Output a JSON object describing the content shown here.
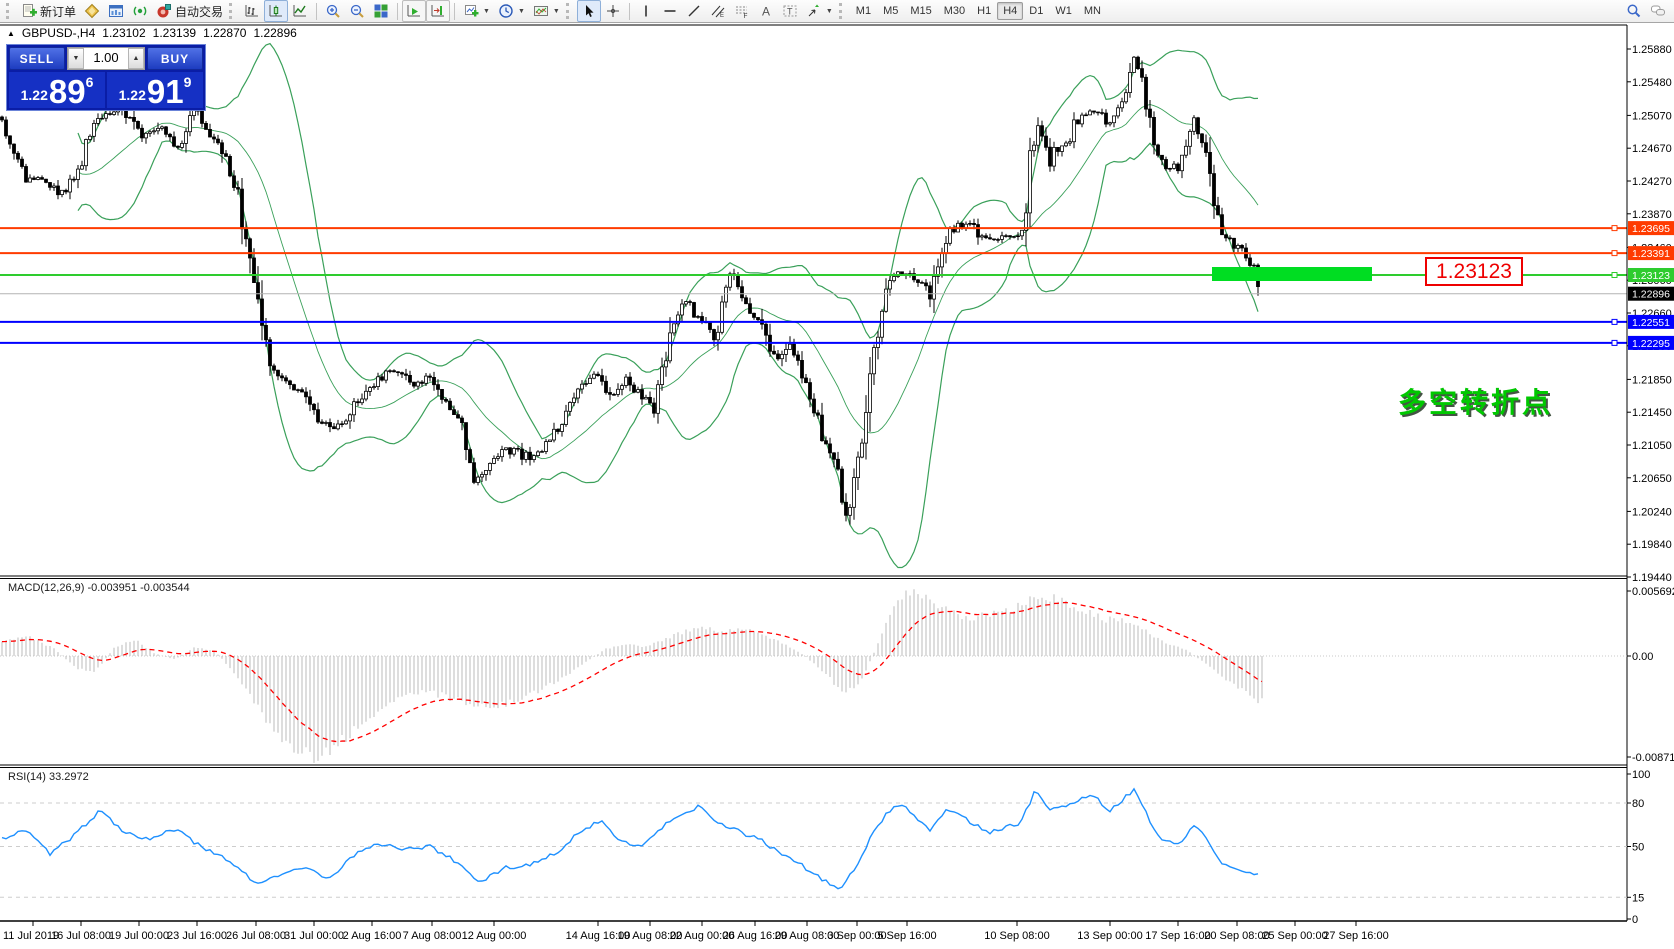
{
  "toolbar": {
    "new_order_label": "新订单",
    "auto_trading_label": "自动交易",
    "timeframes": [
      "M1",
      "M5",
      "M15",
      "M30",
      "H1",
      "H4",
      "D1",
      "W1",
      "MN"
    ],
    "active_timeframe": "H4",
    "items": [
      {
        "kind": "grip"
      },
      {
        "kind": "button",
        "name": "new-order-button",
        "icon": "new-order-icon",
        "label_key": "new_order_label"
      },
      {
        "kind": "button",
        "name": "market-watch-button",
        "icon": "market-watch-icon"
      },
      {
        "kind": "button",
        "name": "data-window-button",
        "icon": "data-window-icon"
      },
      {
        "kind": "button",
        "name": "signals-button",
        "icon": "signals-icon"
      },
      {
        "kind": "button",
        "name": "auto-trading-button",
        "icon": "auto-trading-icon",
        "label_key": "auto_trading_label"
      },
      {
        "kind": "grip"
      },
      {
        "kind": "button",
        "name": "bar-chart-button",
        "icon": "bar-chart-icon"
      },
      {
        "kind": "button",
        "name": "candlestick-chart-button",
        "icon": "candlestick-chart-icon",
        "active": true
      },
      {
        "kind": "button",
        "name": "line-chart-button",
        "icon": "line-chart-icon"
      },
      {
        "kind": "sep"
      },
      {
        "kind": "button",
        "name": "zoom-in-button",
        "icon": "zoom-in-icon"
      },
      {
        "kind": "button",
        "name": "zoom-out-button",
        "icon": "zoom-out-icon"
      },
      {
        "kind": "button",
        "name": "tile-windows-button",
        "icon": "tile-windows-icon"
      },
      {
        "kind": "sep"
      },
      {
        "kind": "button",
        "name": "auto-scroll-button",
        "icon": "auto-scroll-icon",
        "framed": true
      },
      {
        "kind": "button",
        "name": "chart-shift-button",
        "icon": "chart-shift-icon",
        "framed": true
      },
      {
        "kind": "sep"
      },
      {
        "kind": "button",
        "name": "new-chart-button",
        "icon": "new-chart-icon",
        "dropdown": true
      },
      {
        "kind": "button",
        "name": "periods-button",
        "icon": "clock-icon",
        "dropdown": true
      },
      {
        "kind": "button",
        "name": "templates-button",
        "icon": "templates-icon",
        "dropdown": true
      },
      {
        "kind": "grip"
      },
      {
        "kind": "button",
        "name": "cursor-button",
        "icon": "cursor-icon",
        "active": true
      },
      {
        "kind": "button",
        "name": "crosshair-button",
        "icon": "crosshair-icon"
      },
      {
        "kind": "sep"
      },
      {
        "kind": "button",
        "name": "vertical-line-button",
        "icon": "vertical-line-icon"
      },
      {
        "kind": "button",
        "name": "horizontal-line-button",
        "icon": "horizontal-line-icon"
      },
      {
        "kind": "button",
        "name": "trendline-button",
        "icon": "trendline-icon"
      },
      {
        "kind": "button",
        "name": "equidistant-channel-button",
        "icon": "equidistant-channel-icon"
      },
      {
        "kind": "button",
        "name": "fibonacci-button",
        "icon": "fibonacci-icon"
      },
      {
        "kind": "button",
        "name": "text-button",
        "icon": "text-a-icon"
      },
      {
        "kind": "button",
        "name": "text-label-button",
        "icon": "text-label-icon"
      },
      {
        "kind": "button",
        "name": "arrows-button",
        "icon": "arrows-icon",
        "dropdown": true
      },
      {
        "kind": "grip"
      },
      {
        "kind": "timeframes"
      },
      {
        "kind": "spacer"
      },
      {
        "kind": "button",
        "name": "search-button",
        "icon": "search-icon"
      },
      {
        "kind": "button",
        "name": "chat-button",
        "icon": "chat-icon"
      }
    ]
  },
  "symbol_header": {
    "symbol": "GBPUSD-,H4",
    "open": "1.23102",
    "high": "1.23139",
    "low": "1.22870",
    "close": "1.22896"
  },
  "trade_panel": {
    "sell_label": "SELL",
    "buy_label": "BUY",
    "volume": "1.00",
    "sell_price_small": "1.22",
    "sell_price_big": "89",
    "sell_price_sup": "6",
    "buy_price_small": "1.22",
    "buy_price_big": "91",
    "buy_price_sup": "9"
  },
  "annotations": {
    "price_label": "1.23123",
    "cn_text": "多空转折点"
  },
  "colors": {
    "resistance_line": "#ff3b00",
    "pivot_line": "#2ecc2e",
    "support_line": "#0000ff",
    "current_price_line": "#b4b4b4",
    "bollinger": "#3aa05a",
    "candle": "#000000",
    "macd_hist": "#bbbbbb",
    "macd_signal": "#ff0000",
    "rsi_line": "#1e90ff",
    "highlight_rect": "#00dd22",
    "callout": "#ee0000",
    "cn_text": "#00c800"
  },
  "chart_data": {
    "type": "candlestick",
    "symbol": "GBPUSD-",
    "timeframe": "H4",
    "ylim": [
      1.1944,
      1.2588
    ],
    "y_axis_ticks": [
      "1.25880",
      "1.25480",
      "1.25070",
      "1.24670",
      "1.24270",
      "1.23870",
      "1.23460",
      "1.23060",
      "1.22660",
      "1.22260",
      "1.21850",
      "1.21450",
      "1.21050",
      "1.20650",
      "1.20240",
      "1.19840",
      "1.19440"
    ],
    "price_anchors": [
      [
        2,
        1.2505
      ],
      [
        20,
        1.2436
      ],
      [
        45,
        1.2423
      ],
      [
        65,
        1.2411
      ],
      [
        80,
        1.2448
      ],
      [
        100,
        1.2509
      ],
      [
        120,
        1.2515
      ],
      [
        140,
        1.2484
      ],
      [
        160,
        1.2497
      ],
      [
        180,
        1.2466
      ],
      [
        195,
        1.2521
      ],
      [
        210,
        1.2484
      ],
      [
        225,
        1.2454
      ],
      [
        238,
        1.241
      ],
      [
        250,
        1.233
      ],
      [
        262,
        1.2246
      ],
      [
        272,
        1.2198
      ],
      [
        290,
        1.218
      ],
      [
        305,
        1.2165
      ],
      [
        320,
        1.2135
      ],
      [
        335,
        1.2122
      ],
      [
        350,
        1.2145
      ],
      [
        365,
        1.2168
      ],
      [
        380,
        1.2186
      ],
      [
        395,
        1.2197
      ],
      [
        410,
        1.2179
      ],
      [
        430,
        1.2186
      ],
      [
        445,
        1.216
      ],
      [
        460,
        1.2137
      ],
      [
        475,
        1.2062
      ],
      [
        490,
        1.2082
      ],
      [
        505,
        1.21
      ],
      [
        520,
        1.2094
      ],
      [
        535,
        1.2088
      ],
      [
        550,
        1.2112
      ],
      [
        565,
        1.2137
      ],
      [
        580,
        1.2179
      ],
      [
        595,
        1.2191
      ],
      [
        610,
        1.2161
      ],
      [
        625,
        1.2185
      ],
      [
        640,
        1.2167
      ],
      [
        655,
        1.2149
      ],
      [
        670,
        1.2246
      ],
      [
        685,
        1.2283
      ],
      [
        700,
        1.2258
      ],
      [
        715,
        1.2234
      ],
      [
        730,
        1.2316
      ],
      [
        745,
        1.2283
      ],
      [
        760,
        1.2246
      ],
      [
        775,
        1.2209
      ],
      [
        790,
        1.2234
      ],
      [
        805,
        1.2185
      ],
      [
        820,
        1.2125
      ],
      [
        835,
        1.2082
      ],
      [
        845,
        1.2015
      ],
      [
        855,
        1.2064
      ],
      [
        865,
        1.2137
      ],
      [
        875,
        1.2222
      ],
      [
        885,
        1.2295
      ],
      [
        900,
        1.2319
      ],
      [
        915,
        1.2307
      ],
      [
        930,
        1.2289
      ],
      [
        945,
        1.2356
      ],
      [
        960,
        1.2374
      ],
      [
        975,
        1.2368
      ],
      [
        990,
        1.235
      ],
      [
        1005,
        1.2362
      ],
      [
        1020,
        1.2356
      ],
      [
        1038,
        1.2503
      ],
      [
        1050,
        1.2454
      ],
      [
        1065,
        1.2472
      ],
      [
        1080,
        1.2503
      ],
      [
        1095,
        1.2515
      ],
      [
        1110,
        1.2497
      ],
      [
        1125,
        1.2539
      ],
      [
        1135,
        1.2578
      ],
      [
        1145,
        1.2533
      ],
      [
        1155,
        1.2466
      ],
      [
        1165,
        1.2448
      ],
      [
        1180,
        1.2442
      ],
      [
        1195,
        1.2503
      ],
      [
        1205,
        1.2466
      ],
      [
        1215,
        1.2393
      ],
      [
        1225,
        1.2362
      ],
      [
        1235,
        1.235
      ],
      [
        1245,
        1.2337
      ],
      [
        1255,
        1.2319
      ],
      [
        1260,
        1.22896
      ]
    ],
    "bollinger": {
      "period": 20,
      "deviation": 2
    },
    "hlines": [
      {
        "price": 1.23695,
        "label": "1.23695",
        "type": "resistance"
      },
      {
        "price": 1.23391,
        "label": "1.23391",
        "type": "resistance"
      },
      {
        "price": 1.23123,
        "label": "1.23123",
        "type": "pivot"
      },
      {
        "price": 1.22551,
        "label": "1.22551",
        "type": "support"
      },
      {
        "price": 1.22295,
        "label": "1.22295",
        "type": "support"
      }
    ],
    "current_price": {
      "value": 1.22896,
      "label": "1.22896"
    },
    "highlight_rect": {
      "x": 1212,
      "y": 268,
      "w": 160,
      "h": 14
    },
    "time_labels": [
      [
        "11 Jul 2019",
        33
      ],
      [
        "16 Jul 08:00",
        81
      ],
      [
        "19 Jul 00:00",
        139
      ],
      [
        "23 Jul 16:00",
        197
      ],
      [
        "26 Jul 08:00",
        256
      ],
      [
        "31 Jul 00:00",
        314
      ],
      [
        "2 Aug 16:00",
        372
      ],
      [
        "7 Aug 08:00",
        432
      ],
      [
        "12 Aug 00:00",
        494
      ],
      [
        "14 Aug 16:00",
        598
      ],
      [
        "19 Aug 08:00",
        650
      ],
      [
        "22 Aug 00:00",
        702
      ],
      [
        "26 Aug 16:00",
        755
      ],
      [
        "29 Aug 08:00",
        807
      ],
      [
        "3 Sep 00:00",
        857
      ],
      [
        "5 Sep 16:00",
        907
      ],
      [
        "10 Sep 08:00",
        1017
      ],
      [
        "13 Sep 00:00",
        1110
      ],
      [
        "17 Sep 16:00",
        1178
      ],
      [
        "20 Sep 08:00",
        1237
      ],
      [
        "25 Sep 00:00",
        1295
      ],
      [
        "27 Sep 16:00",
        1356
      ]
    ]
  },
  "macd": {
    "label": "MACD(12,26,9)",
    "value1": "-0.003951",
    "value2": "-0.003544",
    "scale_top": "0.005692",
    "scale_zero": "0.00",
    "scale_bottom": "-0.008717",
    "anchors": [
      [
        0,
        0.0013
      ],
      [
        30,
        0.0016
      ],
      [
        55,
        0.0006
      ],
      [
        75,
        -0.001
      ],
      [
        95,
        -0.0014
      ],
      [
        115,
        0.0008
      ],
      [
        135,
        0.0014
      ],
      [
        155,
        0.0002
      ],
      [
        175,
        -0.0003
      ],
      [
        195,
        0.0008
      ],
      [
        215,
        0.0004
      ],
      [
        235,
        -0.0015
      ],
      [
        260,
        -0.0048
      ],
      [
        285,
        -0.0075
      ],
      [
        310,
        -0.0087
      ],
      [
        335,
        -0.0078
      ],
      [
        360,
        -0.0058
      ],
      [
        385,
        -0.0042
      ],
      [
        410,
        -0.003
      ],
      [
        435,
        -0.0033
      ],
      [
        460,
        -0.0038
      ],
      [
        485,
        -0.0044
      ],
      [
        510,
        -0.004
      ],
      [
        535,
        -0.0032
      ],
      [
        560,
        -0.002
      ],
      [
        585,
        -0.0006
      ],
      [
        605,
        0.0006
      ],
      [
        625,
        0.001
      ],
      [
        645,
        0.0008
      ],
      [
        665,
        0.0014
      ],
      [
        685,
        0.0022
      ],
      [
        705,
        0.0025
      ],
      [
        725,
        0.0021
      ],
      [
        745,
        0.0023
      ],
      [
        765,
        0.0018
      ],
      [
        785,
        0.001
      ],
      [
        805,
        0.0
      ],
      [
        825,
        -0.0015
      ],
      [
        845,
        -0.0033
      ],
      [
        860,
        -0.0025
      ],
      [
        875,
        0.0005
      ],
      [
        890,
        0.0035
      ],
      [
        905,
        0.0057
      ],
      [
        925,
        0.005
      ],
      [
        945,
        0.004
      ],
      [
        965,
        0.0033
      ],
      [
        985,
        0.0035
      ],
      [
        1005,
        0.0038
      ],
      [
        1025,
        0.0048
      ],
      [
        1045,
        0.0052
      ],
      [
        1065,
        0.0046
      ],
      [
        1085,
        0.004
      ],
      [
        1105,
        0.0032
      ],
      [
        1125,
        0.003
      ],
      [
        1145,
        0.0022
      ],
      [
        1165,
        0.0012
      ],
      [
        1185,
        0.0006
      ],
      [
        1205,
        -0.0006
      ],
      [
        1225,
        -0.002
      ],
      [
        1245,
        -0.0032
      ],
      [
        1262,
        -0.004
      ]
    ]
  },
  "rsi": {
    "label": "RSI(14) 33.2972",
    "scale": [
      [
        "100",
        100
      ],
      [
        "80",
        80
      ],
      [
        "50",
        50
      ],
      [
        "15",
        15
      ],
      [
        "0",
        0
      ]
    ],
    "levels": [
      80,
      50,
      15
    ],
    "anchors": [
      [
        0,
        55
      ],
      [
        25,
        62
      ],
      [
        50,
        45
      ],
      [
        75,
        58
      ],
      [
        100,
        75
      ],
      [
        125,
        60
      ],
      [
        150,
        55
      ],
      [
        175,
        62
      ],
      [
        200,
        50
      ],
      [
        230,
        40
      ],
      [
        255,
        25
      ],
      [
        280,
        30
      ],
      [
        305,
        35
      ],
      [
        330,
        28
      ],
      [
        355,
        45
      ],
      [
        380,
        52
      ],
      [
        405,
        48
      ],
      [
        430,
        50
      ],
      [
        455,
        40
      ],
      [
        480,
        26
      ],
      [
        505,
        35
      ],
      [
        530,
        38
      ],
      [
        555,
        45
      ],
      [
        580,
        60
      ],
      [
        600,
        68
      ],
      [
        620,
        55
      ],
      [
        640,
        50
      ],
      [
        660,
        62
      ],
      [
        680,
        72
      ],
      [
        700,
        78
      ],
      [
        720,
        65
      ],
      [
        740,
        60
      ],
      [
        760,
        55
      ],
      [
        780,
        45
      ],
      [
        800,
        38
      ],
      [
        820,
        28
      ],
      [
        840,
        20
      ],
      [
        855,
        35
      ],
      [
        870,
        55
      ],
      [
        885,
        72
      ],
      [
        900,
        80
      ],
      [
        915,
        70
      ],
      [
        930,
        62
      ],
      [
        945,
        75
      ],
      [
        960,
        72
      ],
      [
        975,
        65
      ],
      [
        990,
        60
      ],
      [
        1005,
        63
      ],
      [
        1020,
        66
      ],
      [
        1035,
        88
      ],
      [
        1050,
        75
      ],
      [
        1065,
        78
      ],
      [
        1080,
        82
      ],
      [
        1095,
        85
      ],
      [
        1110,
        74
      ],
      [
        1125,
        84
      ],
      [
        1135,
        90
      ],
      [
        1145,
        76
      ],
      [
        1155,
        60
      ],
      [
        1165,
        54
      ],
      [
        1180,
        52
      ],
      [
        1195,
        65
      ],
      [
        1205,
        58
      ],
      [
        1215,
        44
      ],
      [
        1225,
        37
      ],
      [
        1235,
        34
      ],
      [
        1245,
        33
      ],
      [
        1255,
        31
      ],
      [
        1260,
        33.3
      ]
    ]
  }
}
